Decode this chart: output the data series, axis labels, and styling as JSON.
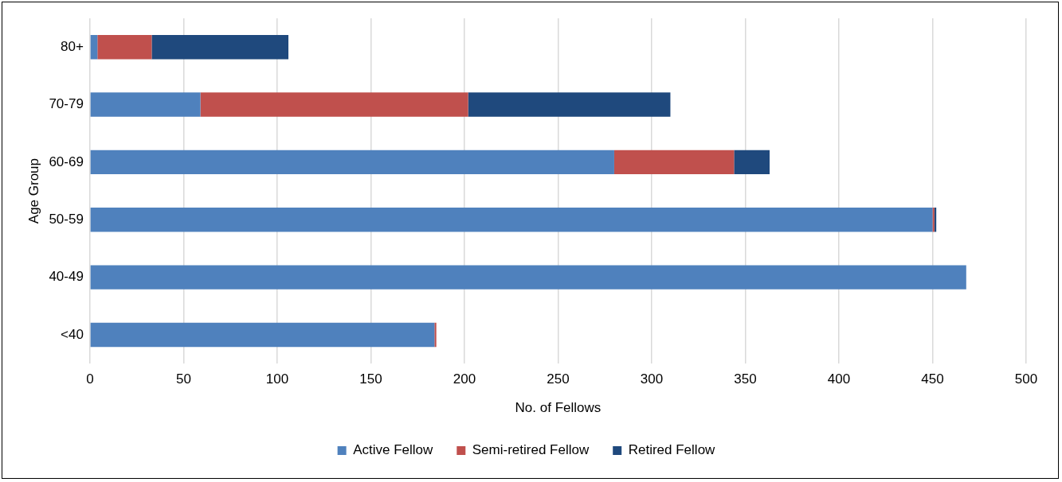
{
  "chart_data": {
    "type": "bar",
    "orientation": "horizontal",
    "stacked": true,
    "xlabel": "No. of Fellows",
    "ylabel": "Age Group",
    "categories": [
      "80+",
      "70-79",
      "60-69",
      "50-59",
      "40-49",
      "<40"
    ],
    "series": [
      {
        "name": "Active Fellow",
        "color": "#4f81bd",
        "values": [
          4,
          59,
          280,
          450,
          468,
          184
        ]
      },
      {
        "name": "Semi-retired Fellow",
        "color": "#c0504d",
        "values": [
          29,
          143,
          64,
          1,
          0,
          1
        ]
      },
      {
        "name": "Retired Fellow",
        "color": "#1f497d",
        "values": [
          73,
          108,
          19,
          1,
          0,
          0
        ]
      }
    ],
    "xlim": [
      0,
      500
    ],
    "xticks": [
      0,
      50,
      100,
      150,
      200,
      250,
      300,
      350,
      400,
      450,
      500
    ],
    "grid": "x",
    "legend": "bottom"
  }
}
